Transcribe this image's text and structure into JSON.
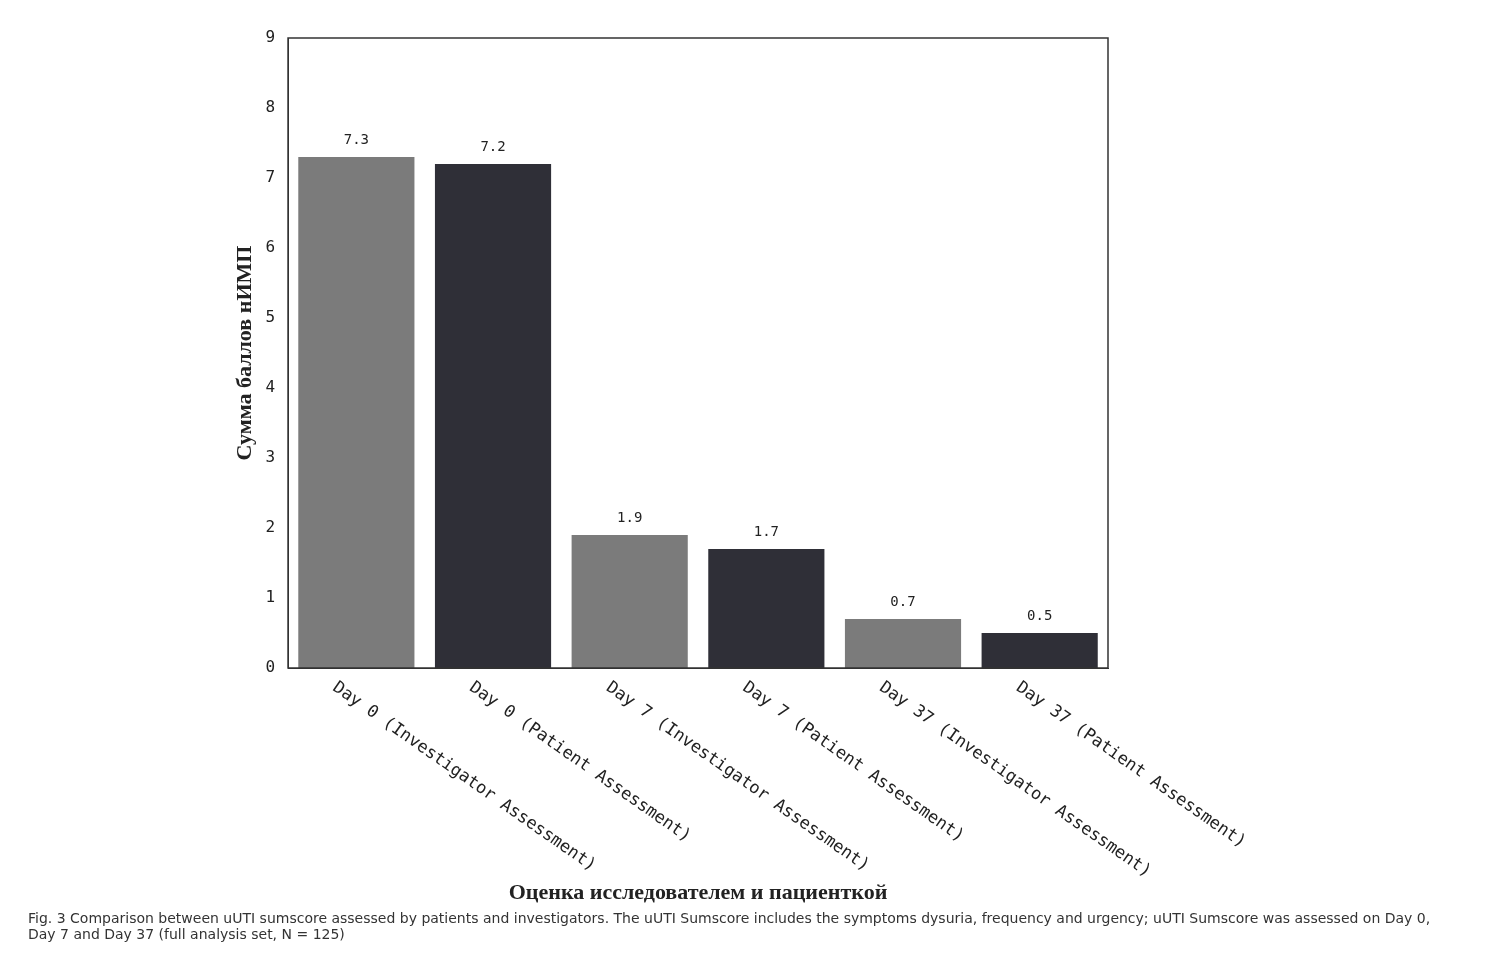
{
  "chart_data": {
    "type": "bar",
    "xlabel": "Оценка исследователем и пациенткой",
    "ylabel": "Сумма баллов нИМП",
    "categories": [
      "Day 0 (Investigator Assessment)",
      "Day 0 (Patient Assessment)",
      "Day 7 (Investigator Assessment)",
      "Day 7 (Patient Assessment)",
      "Day 37 (Investigator Assessment)",
      "Day 37 (Patient Assessment)"
    ],
    "values": [
      7.3,
      7.2,
      1.9,
      1.7,
      0.7,
      0.5
    ],
    "colors": [
      "#7b7b7b",
      "#2f2f37",
      "#7b7b7b",
      "#2f2f37",
      "#7b7b7b",
      "#2f2f37"
    ],
    "ylim": [
      0,
      9
    ],
    "yticks": [
      0,
      1,
      2,
      3,
      4,
      5,
      6,
      7,
      8,
      9
    ],
    "grid": false,
    "legend": false,
    "data_labels": true,
    "annotations": [
      "Fig. 3 Comparison between uUTI sumscore assessed by patients and investigators. The uUTI Sumscore includes the symptoms dysuria, frequency and urgency; uUTI Sumscore was assessed on Day 0, Day 7 and Day 37 (full analysis set, N = 125)"
    ]
  }
}
